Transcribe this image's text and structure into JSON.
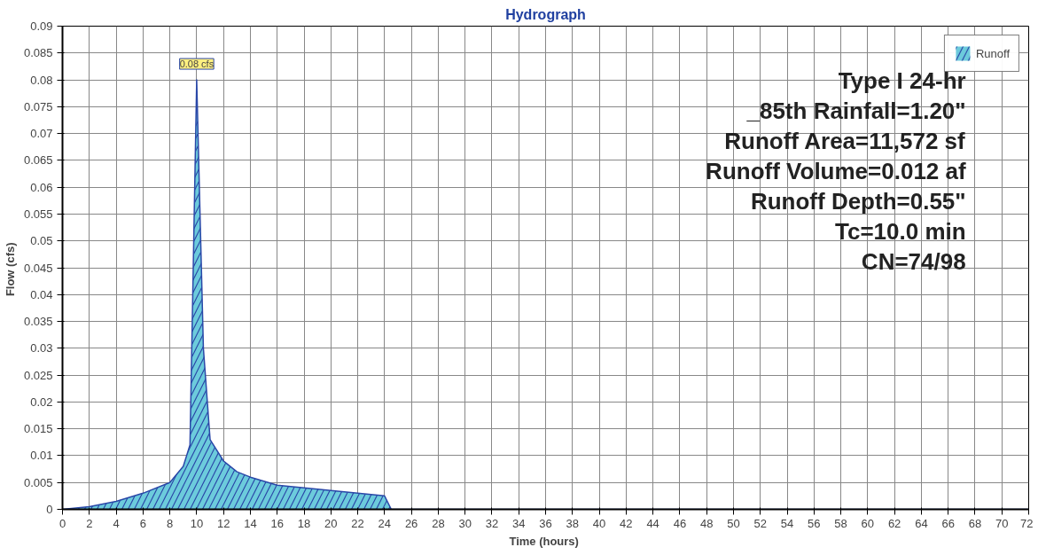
{
  "chart_data": {
    "type": "area",
    "title": "Hydrograph",
    "xlabel": "Time  (hours)",
    "ylabel": "Flow  (cfs)",
    "x": [
      0,
      2,
      4,
      6,
      8,
      9,
      9.5,
      10,
      10.5,
      11,
      12,
      13,
      14,
      16,
      18,
      20,
      22,
      24,
      24.5,
      26,
      30,
      40,
      50,
      60,
      72
    ],
    "series": [
      {
        "name": "Runoff",
        "color": "#6ccbdc",
        "values": [
          0,
          0.0005,
          0.0015,
          0.003,
          0.005,
          0.008,
          0.012,
          0.08,
          0.03,
          0.013,
          0.009,
          0.007,
          0.006,
          0.0045,
          0.004,
          0.0035,
          0.003,
          0.0025,
          0,
          0,
          0,
          0,
          0,
          0,
          0
        ]
      }
    ],
    "xlim": [
      0,
      72
    ],
    "ylim": [
      0,
      0.09
    ],
    "xticks": [
      0,
      2,
      4,
      6,
      8,
      10,
      12,
      14,
      16,
      18,
      20,
      22,
      24,
      26,
      28,
      30,
      32,
      34,
      36,
      38,
      40,
      42,
      44,
      46,
      48,
      50,
      52,
      54,
      56,
      58,
      60,
      62,
      64,
      66,
      68,
      70,
      72
    ],
    "yticks": [
      0,
      0.005,
      0.01,
      0.015,
      0.02,
      0.025,
      0.03,
      0.035,
      0.04,
      0.045,
      0.05,
      0.055,
      0.06,
      0.065,
      0.07,
      0.075,
      0.08,
      0.085,
      0.09
    ],
    "grid": true,
    "legend": "top right",
    "annotations": [
      {
        "text": "0.08 cfs",
        "x": 10,
        "y": 0.08
      },
      "Type I 24-hr",
      "_85th Rainfall=1.20\"",
      "Runoff Area=11,572 sf",
      "Runoff Volume=0.012 af",
      "Runoff Depth=0.55\"",
      "Tc=10.0 min",
      "CN=74/98"
    ]
  }
}
